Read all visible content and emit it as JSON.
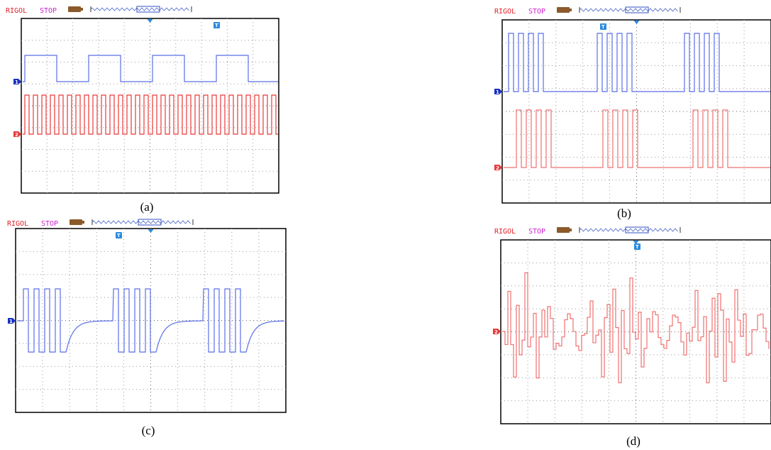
{
  "panels": [
    {
      "brand": "RIGOL",
      "status": "STOP",
      "trigger": "T",
      "channels": [
        "1",
        "2"
      ],
      "caption": "(a)"
    },
    {
      "brand": "RIGOL",
      "status": "STOP",
      "trigger": "T",
      "channels": [
        "1",
        "2"
      ],
      "caption": "(b)"
    },
    {
      "brand": "RIGOL",
      "status": "STOP",
      "trigger": "T",
      "channels": [
        "1"
      ],
      "caption": "(c)"
    },
    {
      "brand": "RIGOL",
      "status": "STOP",
      "trigger": "T",
      "channels": [
        "2"
      ],
      "caption": "(d)"
    }
  ]
}
